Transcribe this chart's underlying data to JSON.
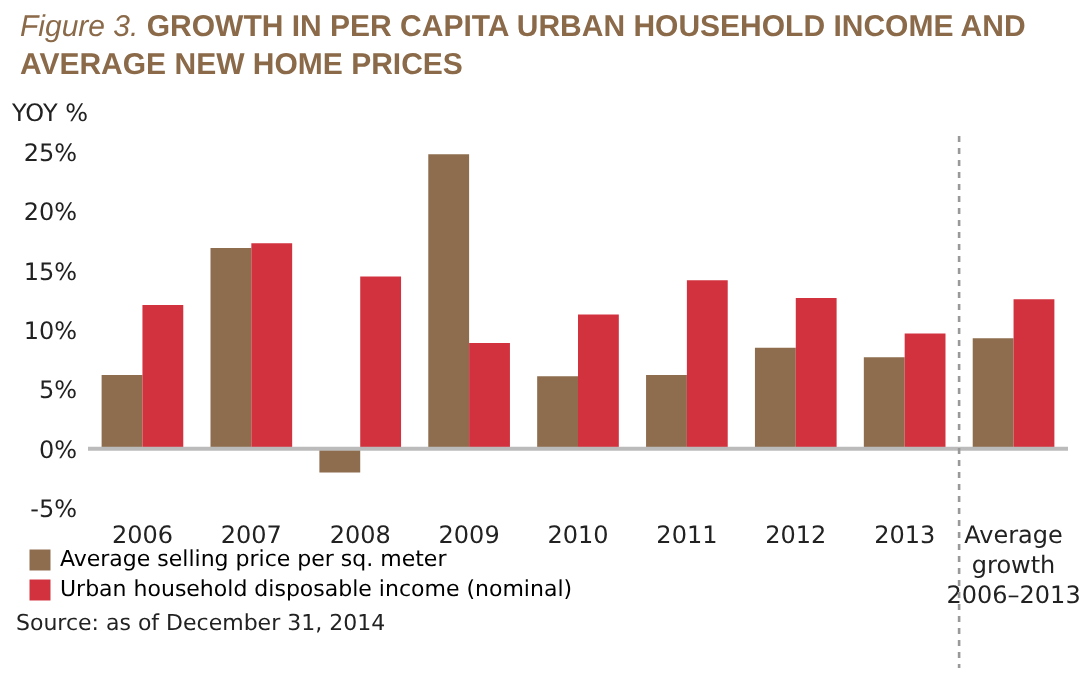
{
  "chart_data": {
    "type": "bar",
    "title": "Figure 3. GROWTH IN PER CAPITA URBAN HOUSEHOLD INCOME AND AVERAGE NEW HOME PRICES",
    "ylabel": "YOY %",
    "categories": [
      "2006",
      "2007",
      "2008",
      "2009",
      "2010",
      "2011",
      "2012",
      "2013",
      "Average growth 2006–2013"
    ],
    "series": [
      {
        "name": "Average selling price per sq. meter",
        "color": "#8e6c4e",
        "values": [
          6.2,
          16.9,
          -2.0,
          24.8,
          6.1,
          6.2,
          8.5,
          7.7,
          9.3
        ]
      },
      {
        "name": "Urban household disposable income (nominal)",
        "color": "#d2323e",
        "values": [
          12.1,
          17.3,
          14.5,
          8.9,
          11.3,
          14.2,
          12.7,
          9.7,
          12.6
        ]
      }
    ],
    "ylim": [
      -5,
      25
    ],
    "yticks": [
      {
        "value": -5,
        "label": "-5%"
      },
      {
        "value": 0,
        "label": "0%"
      },
      {
        "value": 5,
        "label": "5%"
      },
      {
        "value": 10,
        "label": "10%"
      },
      {
        "value": 15,
        "label": "15%"
      },
      {
        "value": 20,
        "label": "20%"
      },
      {
        "value": 25,
        "label": "25%"
      }
    ],
    "ref_lines": [
      {
        "axis": "y",
        "value": 0,
        "color": "#bbbbbb"
      },
      {
        "axis": "x",
        "value": "Average growth 2006–2013",
        "color": "#999999",
        "line_style": "dashed"
      }
    ],
    "grid": false,
    "legend": "bottom left",
    "annotations": [
      "Source: as of December 31, 2014"
    ]
  }
}
